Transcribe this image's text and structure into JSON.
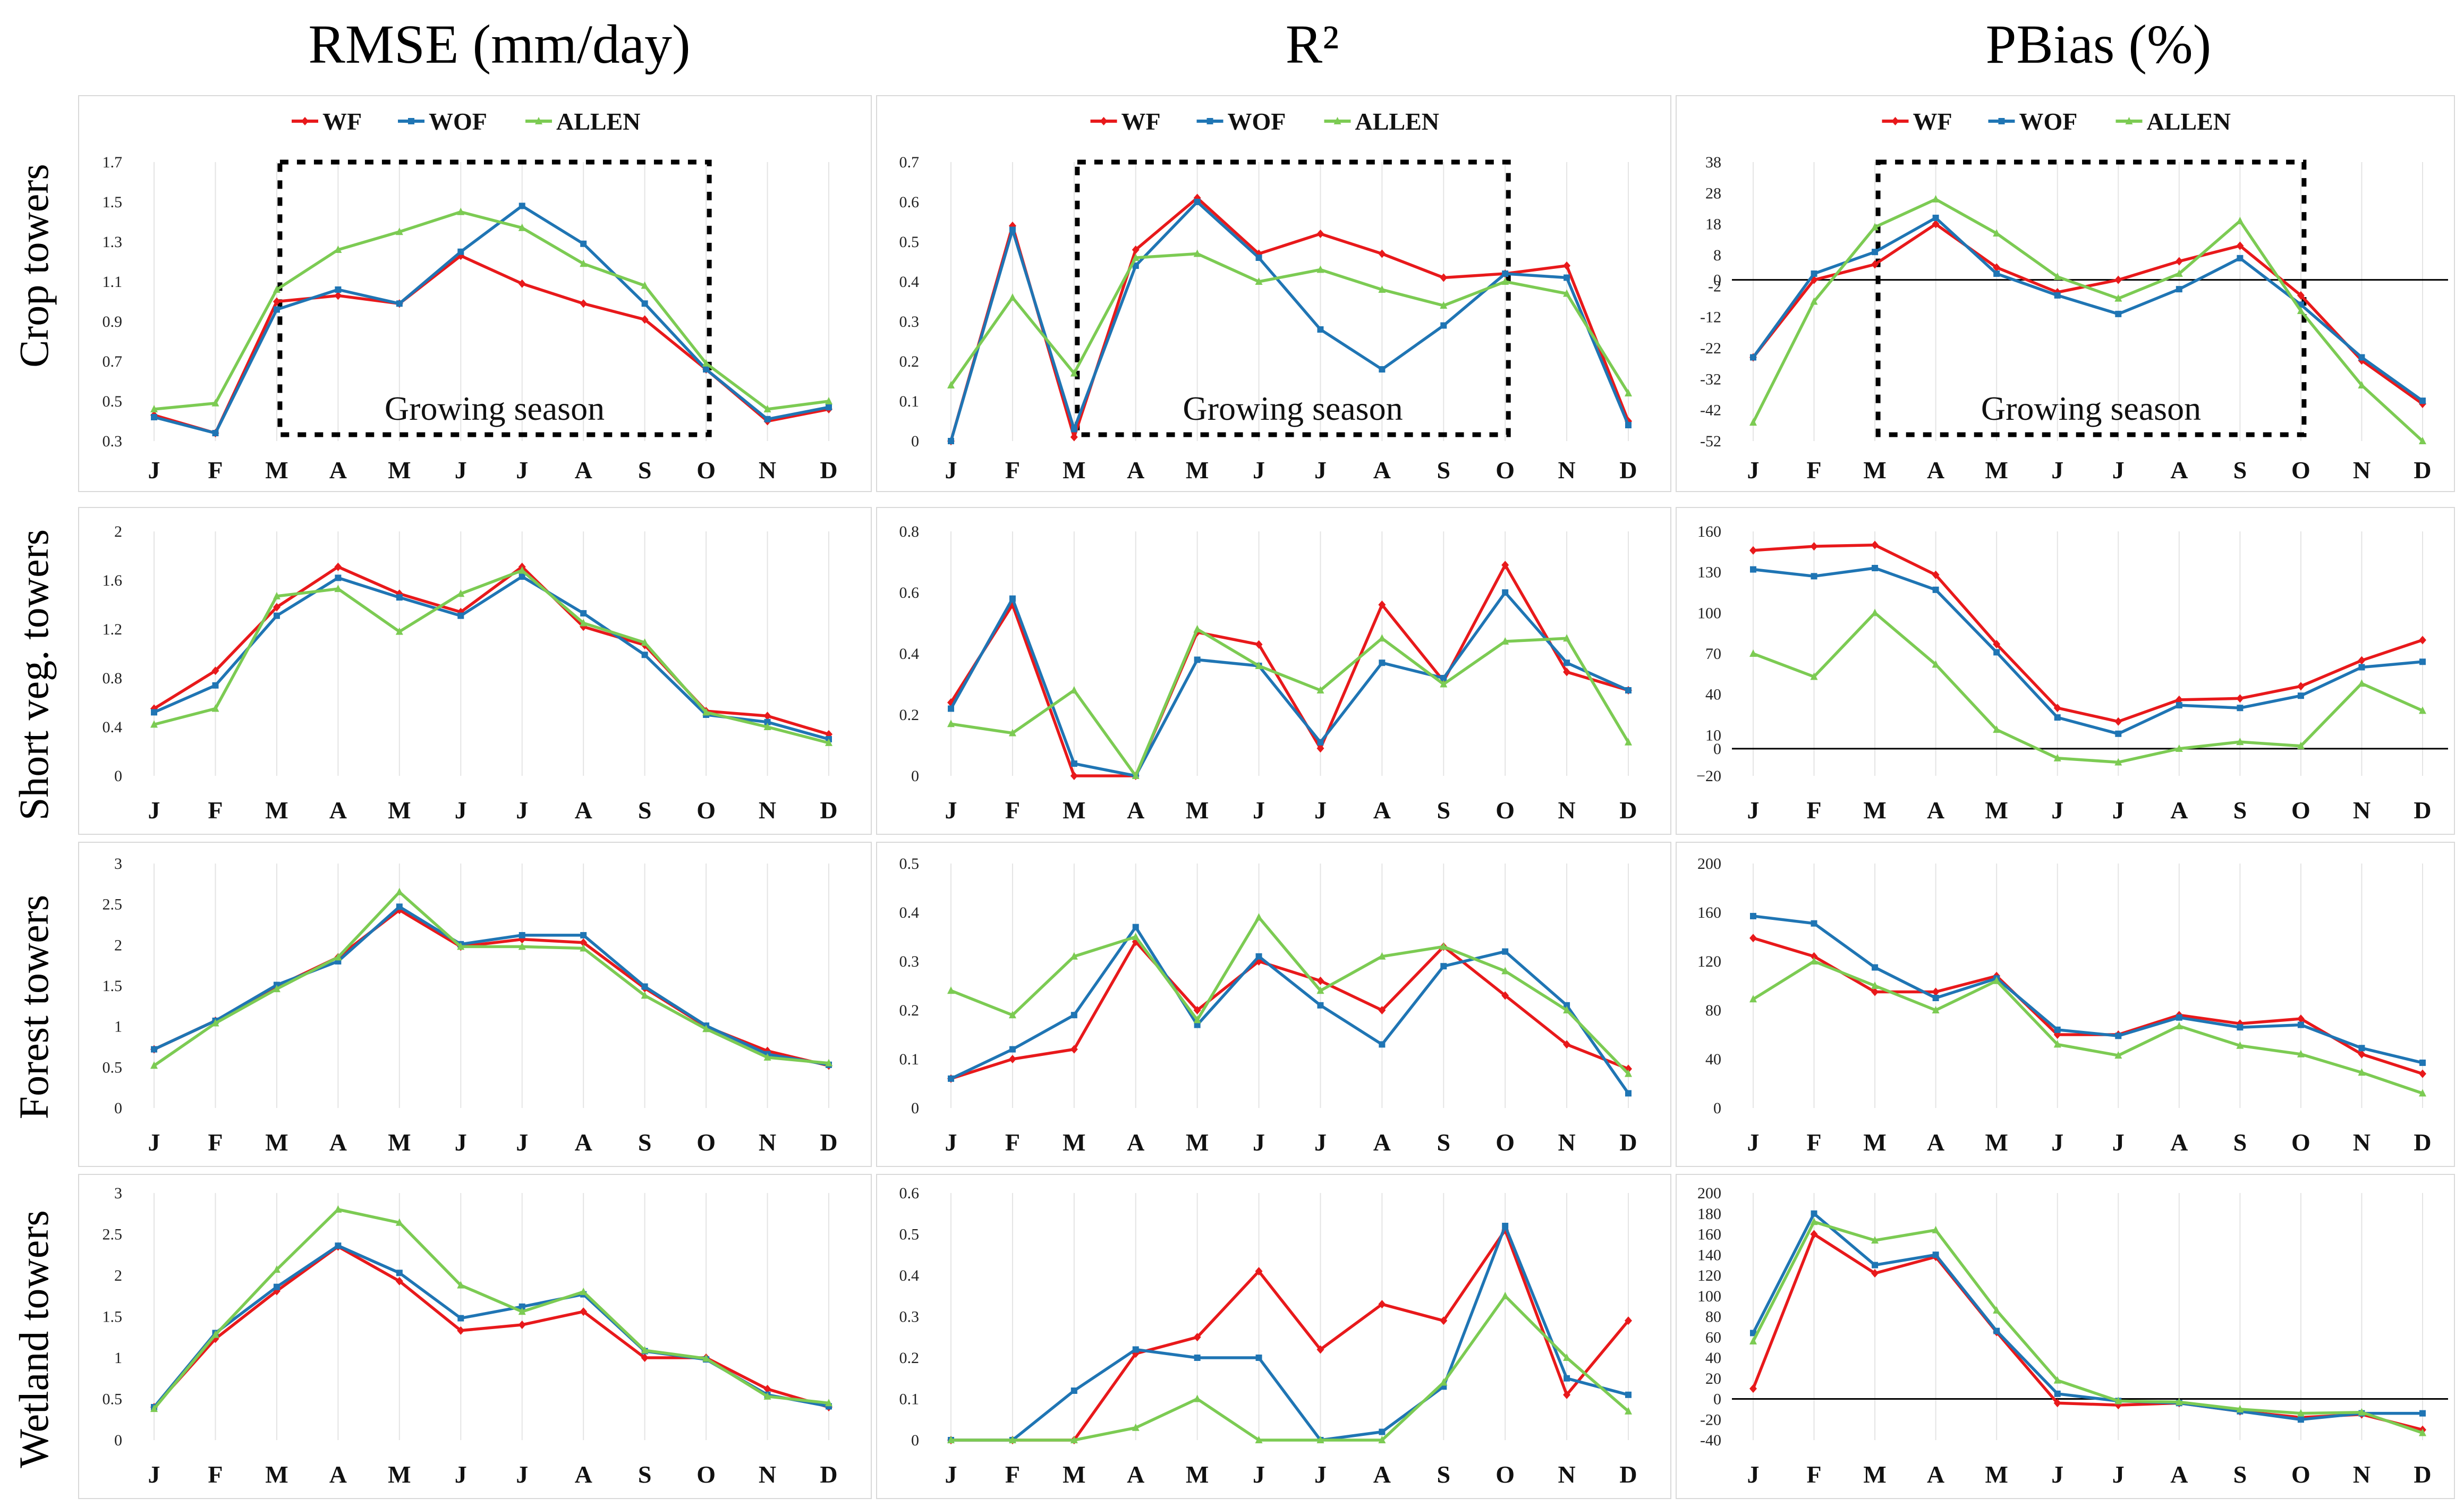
{
  "column_titles": [
    "RMSE (mm/day)",
    "R²",
    "PBias (%)"
  ],
  "row_labels": [
    "Crop towers",
    "Short veg. towers",
    "Forest towers",
    "Wetland towers"
  ],
  "legend": {
    "labels": [
      "WF",
      "WOF",
      "ALLEN"
    ],
    "colors": {
      "WF": "#e8191b",
      "WOF": "#1f75b4",
      "ALLEN": "#7ccb53"
    }
  },
  "growing_season_label": "Growing season",
  "months": [
    "J",
    "F",
    "M",
    "A",
    "M",
    "J",
    "J",
    "A",
    "S",
    "O",
    "N",
    "D"
  ],
  "chart_data": [
    {
      "type": "line",
      "row": "Crop towers",
      "column": "RMSE (mm/day)",
      "ylim": [
        0.3,
        1.7
      ],
      "yticks": [
        0.3,
        0.5,
        0.7,
        0.9,
        1.1,
        1.3,
        1.5,
        1.7
      ],
      "ytick_labels": [
        "0.3",
        "0.5",
        "0.7",
        "0.9",
        "1.1",
        "1.3",
        "1.5",
        "1.7"
      ],
      "show_legend": true,
      "growing_season": true,
      "zero_line": false,
      "series": [
        {
          "name": "WF",
          "values": [
            0.43,
            0.34,
            1.0,
            1.03,
            0.99,
            1.23,
            1.09,
            0.99,
            0.91,
            0.66,
            0.4,
            0.46
          ]
        },
        {
          "name": "WOF",
          "values": [
            0.42,
            0.34,
            0.96,
            1.06,
            0.99,
            1.25,
            1.48,
            1.29,
            0.99,
            0.66,
            0.41,
            0.47
          ]
        },
        {
          "name": "ALLEN",
          "values": [
            0.46,
            0.49,
            1.06,
            1.26,
            1.35,
            1.45,
            1.37,
            1.19,
            1.08,
            0.69,
            0.46,
            0.5
          ]
        }
      ]
    },
    {
      "type": "line",
      "row": "Crop towers",
      "column": "R²",
      "ylim": [
        0,
        0.7
      ],
      "yticks": [
        0,
        0.1,
        0.2,
        0.3,
        0.4,
        0.5,
        0.6,
        0.7
      ],
      "ytick_labels": [
        "0",
        "0.1",
        "0.2",
        "0.3",
        "0.4",
        "0.5",
        "0.6",
        "0.7"
      ],
      "show_legend": true,
      "growing_season": true,
      "zero_line": false,
      "series": [
        {
          "name": "WF",
          "values": [
            0.0,
            0.54,
            0.01,
            0.48,
            0.61,
            0.47,
            0.52,
            0.47,
            0.41,
            0.42,
            0.44,
            0.05
          ]
        },
        {
          "name": "WOF",
          "values": [
            0.0,
            0.53,
            0.03,
            0.44,
            0.6,
            0.46,
            0.28,
            0.18,
            0.29,
            0.42,
            0.41,
            0.04
          ]
        },
        {
          "name": "ALLEN",
          "values": [
            0.14,
            0.36,
            0.17,
            0.46,
            0.47,
            0.4,
            0.43,
            0.38,
            0.34,
            0.4,
            0.37,
            0.12
          ]
        }
      ]
    },
    {
      "type": "line",
      "row": "Crop towers",
      "column": "PBias (%)",
      "ylim": [
        -52,
        38
      ],
      "yticks": [
        -52,
        -42,
        -32,
        -22,
        -12,
        -2,
        8,
        18,
        28,
        38
      ],
      "ytick_labels": [
        "-52",
        "-42",
        "-32",
        "-22",
        "-12",
        "-2",
        "8",
        "18",
        "28",
        "38"
      ],
      "extra_label": {
        "value": 0,
        "text": "0"
      },
      "show_legend": true,
      "growing_season": true,
      "zero_line": true,
      "series": [
        {
          "name": "WF",
          "values": [
            -25,
            0,
            5,
            18,
            4,
            -4,
            0,
            6,
            11,
            -5,
            -26,
            -40
          ]
        },
        {
          "name": "WOF",
          "values": [
            -25,
            2,
            9,
            20,
            2,
            -5,
            -11,
            -3,
            7,
            -8,
            -25,
            -39
          ]
        },
        {
          "name": "ALLEN",
          "values": [
            -46,
            -7,
            17,
            26,
            15,
            1,
            -6,
            2,
            19,
            -10,
            -34,
            -52
          ]
        }
      ]
    },
    {
      "type": "line",
      "row": "Short veg. towers",
      "column": "RMSE (mm/day)",
      "ylim": [
        0,
        2
      ],
      "yticks": [
        0,
        0.4,
        0.8,
        1.2,
        1.6,
        2
      ],
      "ytick_labels": [
        "0",
        "0.4",
        "0.8",
        "1.2",
        "1.6",
        "2"
      ],
      "show_legend": false,
      "growing_season": false,
      "zero_line": false,
      "series": [
        {
          "name": "WF",
          "values": [
            0.55,
            0.86,
            1.38,
            1.71,
            1.49,
            1.34,
            1.71,
            1.22,
            1.07,
            0.53,
            0.49,
            0.34
          ]
        },
        {
          "name": "WOF",
          "values": [
            0.52,
            0.74,
            1.31,
            1.62,
            1.46,
            1.31,
            1.63,
            1.33,
            0.99,
            0.5,
            0.44,
            0.3
          ]
        },
        {
          "name": "ALLEN",
          "values": [
            0.42,
            0.55,
            1.47,
            1.53,
            1.18,
            1.49,
            1.68,
            1.25,
            1.09,
            0.52,
            0.4,
            0.27
          ]
        }
      ]
    },
    {
      "type": "line",
      "row": "Short veg. towers",
      "column": "R²",
      "ylim": [
        0,
        0.8
      ],
      "yticks": [
        0,
        0.2,
        0.4,
        0.6,
        0.8
      ],
      "ytick_labels": [
        "0",
        "0.2",
        "0.4",
        "0.6",
        "0.8"
      ],
      "show_legend": false,
      "growing_season": false,
      "zero_line": false,
      "series": [
        {
          "name": "WF",
          "values": [
            0.24,
            0.56,
            0.0,
            0.0,
            0.47,
            0.43,
            0.09,
            0.56,
            0.31,
            0.69,
            0.34,
            0.28
          ]
        },
        {
          "name": "WOF",
          "values": [
            0.22,
            0.58,
            0.04,
            0.0,
            0.38,
            0.36,
            0.11,
            0.37,
            0.32,
            0.6,
            0.37,
            0.28
          ]
        },
        {
          "name": "ALLEN",
          "values": [
            0.17,
            0.14,
            0.28,
            0.0,
            0.48,
            0.36,
            0.28,
            0.45,
            0.3,
            0.44,
            0.45,
            0.11
          ]
        }
      ]
    },
    {
      "type": "line",
      "row": "Short veg. towers",
      "column": "PBias (%)",
      "ylim": [
        -20,
        160
      ],
      "yticks": [
        -20,
        10,
        40,
        70,
        100,
        130,
        160
      ],
      "ytick_labels": [
        "−20",
        "10",
        "40",
        "70",
        "100",
        "130",
        "160"
      ],
      "extra_label": {
        "value": 0,
        "text": "0"
      },
      "show_legend": false,
      "growing_season": false,
      "zero_line": true,
      "series": [
        {
          "name": "WF",
          "values": [
            146,
            149,
            150,
            128,
            77,
            30,
            20,
            36,
            37,
            46,
            65,
            80
          ]
        },
        {
          "name": "WOF",
          "values": [
            132,
            127,
            133,
            117,
            71,
            23,
            11,
            32,
            30,
            39,
            60,
            64
          ]
        },
        {
          "name": "ALLEN",
          "values": [
            70,
            53,
            100,
            62,
            14,
            -7,
            -10,
            0,
            5,
            2,
            48,
            28
          ]
        }
      ]
    },
    {
      "type": "line",
      "row": "Forest towers",
      "column": "RMSE (mm/day)",
      "ylim": [
        0,
        3
      ],
      "yticks": [
        0,
        0.5,
        1,
        1.5,
        2,
        2.5,
        3
      ],
      "ytick_labels": [
        "0",
        "0.5",
        "1",
        "1.5",
        "2",
        "2.5",
        "3"
      ],
      "show_legend": false,
      "growing_season": false,
      "zero_line": false,
      "series": [
        {
          "name": "WF",
          "values": [
            0.72,
            1.07,
            1.49,
            1.85,
            2.43,
            1.98,
            2.07,
            2.03,
            1.47,
            1.0,
            0.7,
            0.52
          ]
        },
        {
          "name": "WOF",
          "values": [
            0.72,
            1.07,
            1.51,
            1.8,
            2.47,
            2.01,
            2.12,
            2.12,
            1.49,
            1.01,
            0.66,
            0.53
          ]
        },
        {
          "name": "ALLEN",
          "values": [
            0.52,
            1.04,
            1.46,
            1.85,
            2.65,
            1.98,
            1.98,
            1.96,
            1.38,
            0.97,
            0.62,
            0.55
          ]
        }
      ]
    },
    {
      "type": "line",
      "row": "Forest towers",
      "column": "R²",
      "ylim": [
        0,
        0.5
      ],
      "yticks": [
        0,
        0.1,
        0.2,
        0.3,
        0.4,
        0.5
      ],
      "ytick_labels": [
        "0",
        "0.1",
        "0.2",
        "0.3",
        "0.4",
        "0.5"
      ],
      "show_legend": false,
      "growing_season": false,
      "zero_line": false,
      "series": [
        {
          "name": "WF",
          "values": [
            0.06,
            0.1,
            0.12,
            0.34,
            0.2,
            0.3,
            0.26,
            0.2,
            0.33,
            0.23,
            0.13,
            0.08
          ]
        },
        {
          "name": "WOF",
          "values": [
            0.06,
            0.12,
            0.19,
            0.37,
            0.17,
            0.31,
            0.21,
            0.13,
            0.29,
            0.32,
            0.21,
            0.03
          ]
        },
        {
          "name": "ALLEN",
          "values": [
            0.24,
            0.19,
            0.31,
            0.35,
            0.18,
            0.39,
            0.24,
            0.31,
            0.33,
            0.28,
            0.2,
            0.07
          ]
        }
      ]
    },
    {
      "type": "line",
      "row": "Forest towers",
      "column": "PBias (%)",
      "ylim": [
        0,
        200
      ],
      "yticks": [
        0,
        40,
        80,
        120,
        160,
        200
      ],
      "ytick_labels": [
        "0",
        "40",
        "80",
        "120",
        "160",
        "200"
      ],
      "show_legend": false,
      "growing_season": false,
      "zero_line": false,
      "series": [
        {
          "name": "WF",
          "values": [
            139,
            124,
            95,
            95,
            108,
            60,
            60,
            76,
            69,
            73,
            44,
            28
          ]
        },
        {
          "name": "WOF",
          "values": [
            157,
            151,
            115,
            90,
            106,
            64,
            59,
            74,
            66,
            68,
            49,
            37
          ]
        },
        {
          "name": "ALLEN",
          "values": [
            89,
            120,
            100,
            80,
            104,
            52,
            43,
            67,
            51,
            44,
            29,
            12
          ]
        }
      ]
    },
    {
      "type": "line",
      "row": "Wetland towers",
      "column": "RMSE (mm/day)",
      "ylim": [
        0,
        3
      ],
      "yticks": [
        0,
        0.5,
        1,
        1.5,
        2,
        2.5,
        3
      ],
      "ytick_labels": [
        "0",
        "0.5",
        "1",
        "1.5",
        "2",
        "2.5",
        "3"
      ],
      "show_legend": false,
      "growing_season": false,
      "zero_line": false,
      "series": [
        {
          "name": "WF",
          "values": [
            0.4,
            1.23,
            1.81,
            2.35,
            1.93,
            1.33,
            1.4,
            1.56,
            1.0,
            1.0,
            0.62,
            0.4
          ]
        },
        {
          "name": "WOF",
          "values": [
            0.4,
            1.3,
            1.86,
            2.36,
            2.03,
            1.48,
            1.62,
            1.77,
            1.08,
            0.98,
            0.55,
            0.41
          ]
        },
        {
          "name": "ALLEN",
          "values": [
            0.38,
            1.28,
            2.07,
            2.8,
            2.64,
            1.88,
            1.56,
            1.8,
            1.09,
            0.99,
            0.53,
            0.45
          ]
        }
      ]
    },
    {
      "type": "line",
      "row": "Wetland towers",
      "column": "R²",
      "ylim": [
        0,
        0.6
      ],
      "yticks": [
        0,
        0.1,
        0.2,
        0.3,
        0.4,
        0.5,
        0.6
      ],
      "ytick_labels": [
        "0",
        "0.1",
        "0.2",
        "0.3",
        "0.4",
        "0.5",
        "0.6"
      ],
      "show_legend": false,
      "growing_season": false,
      "zero_line": false,
      "series": [
        {
          "name": "WF",
          "values": [
            0.0,
            0.0,
            0.0,
            0.21,
            0.25,
            0.41,
            0.22,
            0.33,
            0.29,
            0.51,
            0.11,
            0.29
          ]
        },
        {
          "name": "WOF",
          "values": [
            0.0,
            0.0,
            0.12,
            0.22,
            0.2,
            0.2,
            0.0,
            0.02,
            0.13,
            0.52,
            0.15,
            0.11
          ]
        },
        {
          "name": "ALLEN",
          "values": [
            0.0,
            0.0,
            0.0,
            0.03,
            0.1,
            0.0,
            0.0,
            0.0,
            0.14,
            0.35,
            0.2,
            0.07
          ]
        }
      ]
    },
    {
      "type": "line",
      "row": "Wetland towers",
      "column": "PBias (%)",
      "ylim": [
        -40,
        200
      ],
      "yticks": [
        -40,
        -20,
        0,
        20,
        40,
        60,
        80,
        100,
        120,
        140,
        160,
        180,
        200
      ],
      "ytick_labels": [
        "-40",
        "-20",
        "0",
        "20",
        "40",
        "60",
        "80",
        "100",
        "120",
        "140",
        "160",
        "180",
        "200"
      ],
      "show_legend": false,
      "growing_season": false,
      "zero_line": true,
      "series": [
        {
          "name": "WF",
          "values": [
            10,
            160,
            122,
            138,
            65,
            -4,
            -6,
            -4,
            -12,
            -18,
            -15,
            -30
          ]
        },
        {
          "name": "WOF",
          "values": [
            64,
            180,
            130,
            140,
            66,
            5,
            -2,
            -4,
            -12,
            -20,
            -14,
            -14
          ]
        },
        {
          "name": "ALLEN",
          "values": [
            56,
            172,
            154,
            164,
            86,
            18,
            -2,
            -3,
            -10,
            -14,
            -13,
            -33
          ]
        }
      ]
    }
  ]
}
